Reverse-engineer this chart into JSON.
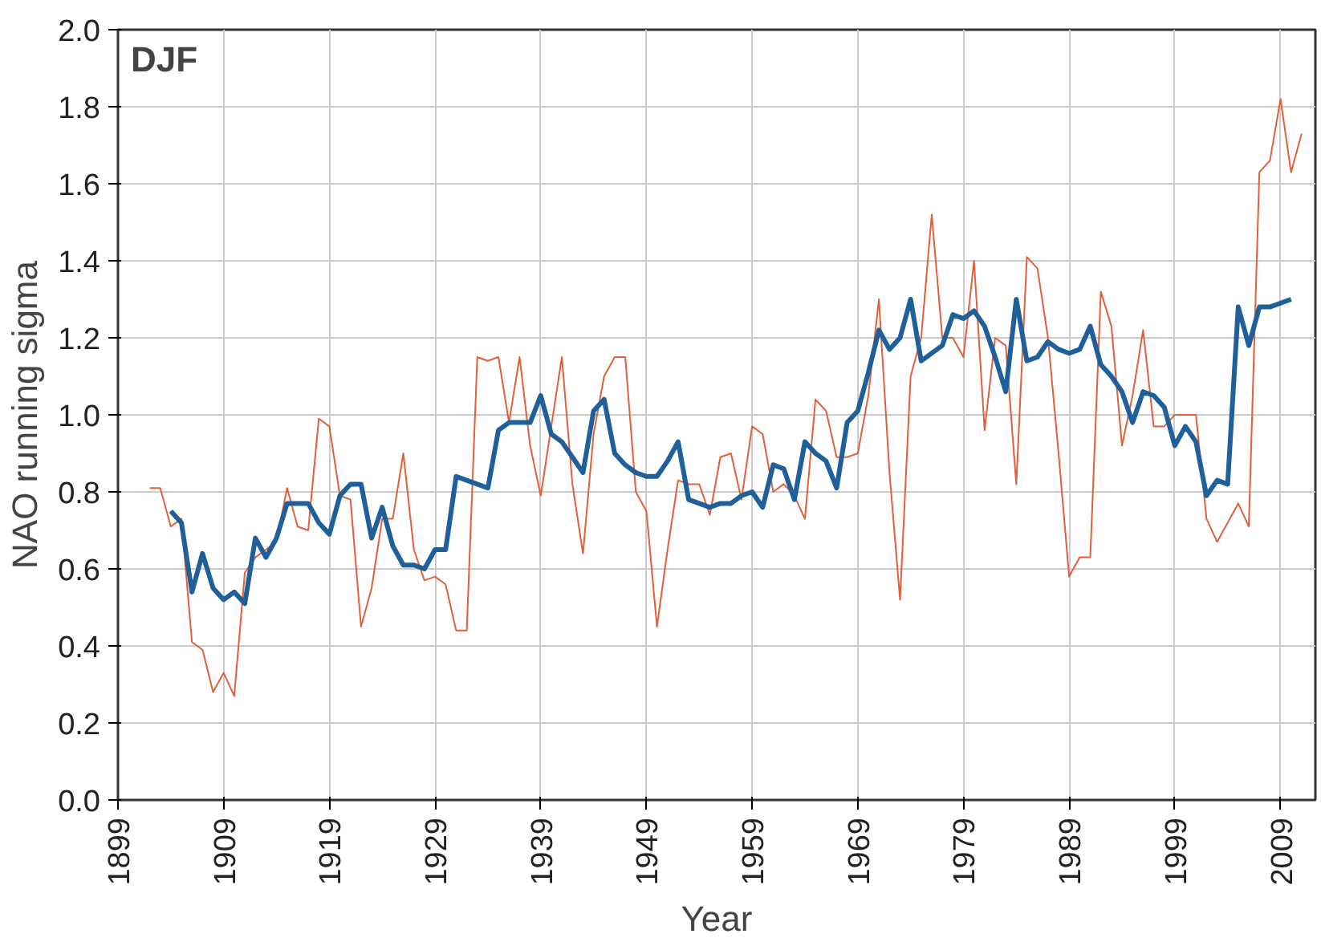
{
  "chart_data": {
    "type": "line",
    "xlabel": "Year",
    "ylabel": "NAO running sigma",
    "annotations": [
      "DJF"
    ],
    "xlim": [
      1899,
      2012.3
    ],
    "ylim": [
      0,
      2
    ],
    "xticks": [
      1899,
      1909,
      1919,
      1929,
      1939,
      1949,
      1959,
      1969,
      1979,
      1989,
      1999,
      2009
    ],
    "yticks": [
      {
        "value": 0,
        "label": "0.0"
      },
      {
        "value": 0.2,
        "label": "0.2"
      },
      {
        "value": 0.4,
        "label": "0.4"
      },
      {
        "value": 0.6,
        "label": "0.6"
      },
      {
        "value": 0.8,
        "label": "0.8"
      },
      {
        "value": 1.0,
        "label": "1.0"
      },
      {
        "value": 1.2,
        "label": "1.2"
      },
      {
        "value": 1.4,
        "label": "1.4"
      },
      {
        "value": 1.6,
        "label": "1.6"
      },
      {
        "value": 1.8,
        "label": "1.8"
      },
      {
        "value": 2.0,
        "label": "2.0"
      }
    ],
    "grid": true,
    "marker": "none",
    "line_style": "solid",
    "series": [
      {
        "color": "#e0603a",
        "x": [
          1902,
          1903,
          1904,
          1905,
          1906,
          1907,
          1908,
          1909,
          1910,
          1911,
          1912,
          1913,
          1914,
          1915,
          1916,
          1917,
          1918,
          1919,
          1920,
          1921,
          1922,
          1923,
          1924,
          1925,
          1926,
          1927,
          1928,
          1929,
          1930,
          1931,
          1932,
          1933,
          1934,
          1935,
          1936,
          1937,
          1938,
          1939,
          1940,
          1941,
          1942,
          1943,
          1944,
          1945,
          1946,
          1947,
          1948,
          1949,
          1950,
          1951,
          1952,
          1953,
          1954,
          1955,
          1956,
          1957,
          1958,
          1959,
          1960,
          1961,
          1962,
          1963,
          1964,
          1965,
          1966,
          1967,
          1968,
          1969,
          1970,
          1971,
          1972,
          1973,
          1974,
          1975,
          1976,
          1977,
          1978,
          1979,
          1980,
          1981,
          1982,
          1983,
          1984,
          1985,
          1986,
          1987,
          1988,
          1989,
          1990,
          1991,
          1992,
          1993,
          1994,
          1995,
          1996,
          1997,
          1998,
          1999,
          2000,
          2001,
          2002,
          2003,
          2004,
          2005,
          2006,
          2007,
          2008,
          2009,
          2010,
          2011
        ],
        "values": [
          0.81,
          0.81,
          0.71,
          0.73,
          0.41,
          0.39,
          0.28,
          0.33,
          0.27,
          0.59,
          0.63,
          0.65,
          0.67,
          0.81,
          0.71,
          0.7,
          0.99,
          0.97,
          0.79,
          0.78,
          0.45,
          0.55,
          0.73,
          0.73,
          0.9,
          0.65,
          0.57,
          0.58,
          0.56,
          0.44,
          0.44,
          1.15,
          1.14,
          1.15,
          0.98,
          1.15,
          0.92,
          0.79,
          0.97,
          1.15,
          0.82,
          0.64,
          0.95,
          1.1,
          1.15,
          1.15,
          0.8,
          0.75,
          0.45,
          0.65,
          0.83,
          0.82,
          0.82,
          0.74,
          0.89,
          0.9,
          0.78,
          0.97,
          0.95,
          0.8,
          0.82,
          0.79,
          0.73,
          1.04,
          1.01,
          0.89,
          0.89,
          0.9,
          1.05,
          1.3,
          0.85,
          0.52,
          1.1,
          1.2,
          1.52,
          1.2,
          1.2,
          1.15,
          1.4,
          0.96,
          1.2,
          1.18,
          0.82,
          1.41,
          1.38,
          1.2,
          0.9,
          0.58,
          0.63,
          0.63,
          1.32,
          1.23,
          0.92,
          1.05,
          1.22,
          0.97,
          0.97,
          1.0,
          1.0,
          1.0,
          0.73,
          0.67,
          0.72,
          0.77,
          0.71,
          1.63,
          1.66,
          1.82,
          1.63,
          1.73
        ]
      },
      {
        "color": "#1f5f9a",
        "x": [
          1904,
          1905,
          1906,
          1907,
          1908,
          1909,
          1910,
          1911,
          1912,
          1913,
          1914,
          1915,
          1916,
          1917,
          1918,
          1919,
          1920,
          1921,
          1922,
          1923,
          1924,
          1925,
          1926,
          1927,
          1928,
          1929,
          1930,
          1931,
          1932,
          1933,
          1934,
          1935,
          1936,
          1937,
          1938,
          1939,
          1940,
          1941,
          1942,
          1943,
          1944,
          1945,
          1946,
          1947,
          1948,
          1949,
          1950,
          1951,
          1952,
          1953,
          1954,
          1955,
          1956,
          1957,
          1958,
          1959,
          1960,
          1961,
          1962,
          1963,
          1964,
          1965,
          1966,
          1967,
          1968,
          1969,
          1970,
          1971,
          1972,
          1973,
          1974,
          1975,
          1976,
          1977,
          1978,
          1979,
          1980,
          1981,
          1982,
          1983,
          1984,
          1985,
          1986,
          1987,
          1988,
          1989,
          1990,
          1991,
          1992,
          1993,
          1994,
          1995,
          1996,
          1997,
          1998,
          1999,
          2000,
          2001,
          2002,
          2003,
          2004,
          2005,
          2006,
          2007,
          2008,
          2009,
          2010
        ],
        "values": [
          0.75,
          0.72,
          0.54,
          0.64,
          0.55,
          0.52,
          0.54,
          0.51,
          0.68,
          0.63,
          0.68,
          0.77,
          0.77,
          0.77,
          0.72,
          0.69,
          0.79,
          0.82,
          0.82,
          0.68,
          0.76,
          0.66,
          0.61,
          0.61,
          0.6,
          0.65,
          0.65,
          0.84,
          0.83,
          0.82,
          0.81,
          0.96,
          0.98,
          0.98,
          0.98,
          1.05,
          0.95,
          0.93,
          0.89,
          0.85,
          1.01,
          1.04,
          0.9,
          0.87,
          0.85,
          0.84,
          0.84,
          0.88,
          0.93,
          0.78,
          0.77,
          0.76,
          0.77,
          0.77,
          0.79,
          0.8,
          0.76,
          0.87,
          0.86,
          0.78,
          0.93,
          0.9,
          0.88,
          0.81,
          0.98,
          1.01,
          1.11,
          1.22,
          1.17,
          1.2,
          1.3,
          1.14,
          1.16,
          1.18,
          1.26,
          1.25,
          1.27,
          1.23,
          1.15,
          1.06,
          1.3,
          1.14,
          1.15,
          1.19,
          1.17,
          1.16,
          1.17,
          1.23,
          1.13,
          1.1,
          1.06,
          0.98,
          1.06,
          1.05,
          1.02,
          0.92,
          0.97,
          0.93,
          0.79,
          0.83,
          0.82,
          1.28,
          1.18,
          1.28,
          1.28,
          1.29,
          1.3
        ]
      }
    ]
  }
}
